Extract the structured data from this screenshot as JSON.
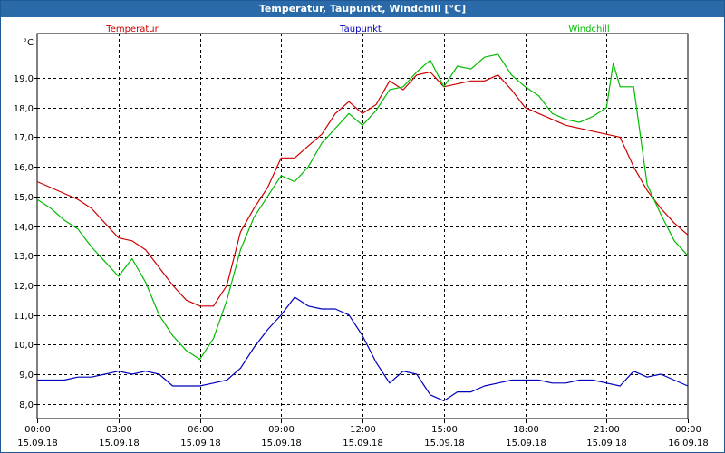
{
  "window": {
    "title": "Temperatur, Taupunkt, Windchill [°C]"
  },
  "chart_data": {
    "type": "line",
    "title": "Temperatur, Taupunkt, Windchill [°C]",
    "ylabel": "°C",
    "ylim": [
      7.5,
      20.5
    ],
    "yticks": [
      8.0,
      9.0,
      10.0,
      11.0,
      12.0,
      13.0,
      14.0,
      15.0,
      16.0,
      17.0,
      18.0,
      19.0
    ],
    "ytick_labels": [
      "8,0",
      "9,0",
      "10,0",
      "11,0",
      "12,0",
      "13,0",
      "14,0",
      "15,0",
      "16,0",
      "17,0",
      "18,0",
      "19,0"
    ],
    "xlim_hours": [
      0,
      24
    ],
    "xticks_hours": [
      0,
      3,
      6,
      9,
      12,
      15,
      18,
      21,
      24
    ],
    "xtick_time_labels": [
      "00:00",
      "03:00",
      "06:00",
      "09:00",
      "12:00",
      "15:00",
      "18:00",
      "21:00",
      "00:00"
    ],
    "xtick_date_labels": [
      "15.09.18",
      "15.09.18",
      "15.09.18",
      "15.09.18",
      "15.09.18",
      "15.09.18",
      "15.09.18",
      "15.09.18",
      "16.09.18"
    ],
    "grid": true,
    "legend_position": "top",
    "series": [
      {
        "name": "Temperatur",
        "color": "#cc0000",
        "x": [
          0,
          0.5,
          1,
          1.5,
          2,
          2.5,
          3,
          3.5,
          4,
          4.5,
          5,
          5.5,
          6,
          6.5,
          7,
          7.5,
          8,
          8.5,
          9,
          9.5,
          10,
          10.5,
          11,
          11.5,
          12,
          12.5,
          13,
          13.5,
          14,
          14.5,
          15,
          15.5,
          16,
          16.5,
          17,
          17.5,
          18,
          18.5,
          19,
          19.5,
          20,
          20.5,
          21,
          21.5,
          22,
          22.5,
          23,
          23.5,
          24
        ],
        "y": [
          15.5,
          15.3,
          15.1,
          14.9,
          14.6,
          14.1,
          13.6,
          13.5,
          13.2,
          12.6,
          12.0,
          11.5,
          11.3,
          11.3,
          12.0,
          13.8,
          14.6,
          15.3,
          16.3,
          16.3,
          16.7,
          17.1,
          17.8,
          18.2,
          17.8,
          18.1,
          18.9,
          18.6,
          19.1,
          19.2,
          18.7,
          18.8,
          18.9,
          18.9,
          19.1,
          18.6,
          18.0,
          17.8,
          17.6,
          17.4,
          17.3,
          17.2,
          17.1,
          17.0,
          16.0,
          15.2,
          14.6,
          14.1,
          13.7
        ]
      },
      {
        "name": "Taupunkt",
        "color": "#0000bb",
        "x": [
          0,
          0.5,
          1,
          1.5,
          2,
          2.5,
          3,
          3.5,
          4,
          4.5,
          5,
          5.5,
          6,
          6.5,
          7,
          7.5,
          8,
          8.5,
          9,
          9.5,
          10,
          10.5,
          11,
          11.5,
          12,
          12.5,
          13,
          13.5,
          14,
          14.5,
          15,
          15.5,
          16,
          16.5,
          17,
          17.5,
          18,
          18.5,
          19,
          19.5,
          20,
          20.5,
          21,
          21.5,
          22,
          22.5,
          23,
          23.5,
          24
        ],
        "y": [
          8.8,
          8.8,
          8.8,
          8.9,
          8.9,
          9.0,
          9.1,
          9.0,
          9.1,
          9.0,
          8.6,
          8.6,
          8.6,
          8.7,
          8.8,
          9.2,
          9.9,
          10.5,
          11.0,
          11.6,
          11.3,
          11.2,
          11.2,
          11.0,
          10.3,
          9.4,
          8.7,
          9.1,
          9.0,
          8.3,
          8.1,
          8.4,
          8.4,
          8.6,
          8.7,
          8.8,
          8.8,
          8.8,
          8.7,
          8.7,
          8.8,
          8.8,
          8.7,
          8.6,
          9.1,
          8.9,
          9.0,
          8.8,
          8.6
        ]
      },
      {
        "name": "Windchill",
        "color": "#00bb00",
        "x": [
          0,
          0.5,
          1,
          1.5,
          2,
          2.5,
          3,
          3.5,
          4,
          4.5,
          5,
          5.5,
          6,
          6.5,
          7,
          7.5,
          8,
          8.5,
          9,
          9.5,
          10,
          10.5,
          11,
          11.5,
          12,
          12.5,
          13,
          13.5,
          14,
          14.5,
          15,
          15.5,
          16,
          16.5,
          17,
          17.5,
          18,
          18.5,
          19,
          19.5,
          20,
          20.5,
          21,
          21.25,
          21.5,
          22,
          22.5,
          23,
          23.5,
          24
        ],
        "y": [
          14.9,
          14.6,
          14.2,
          13.9,
          13.3,
          12.8,
          12.3,
          12.9,
          12.1,
          11.0,
          10.3,
          9.8,
          9.5,
          10.2,
          11.5,
          13.2,
          14.3,
          15.0,
          15.7,
          15.5,
          16.0,
          16.8,
          17.3,
          17.8,
          17.4,
          17.9,
          18.6,
          18.7,
          19.2,
          19.6,
          18.7,
          19.4,
          19.3,
          19.7,
          19.8,
          19.1,
          18.7,
          18.4,
          17.8,
          17.6,
          17.5,
          17.7,
          18.0,
          19.5,
          18.7,
          18.7,
          15.4,
          14.4,
          13.5,
          13.0
        ]
      }
    ]
  }
}
